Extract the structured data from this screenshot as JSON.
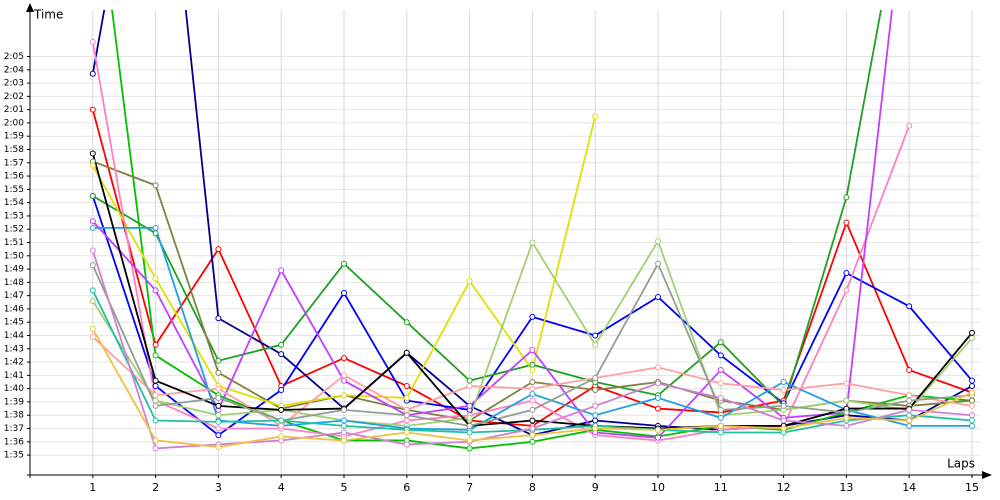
{
  "chart_data": {
    "type": "line",
    "y_label": "Time",
    "x_label": "Laps",
    "x": [
      1,
      2,
      3,
      4,
      5,
      6,
      7,
      8,
      9,
      10,
      11,
      12,
      13,
      14,
      15
    ],
    "xlim": [
      0,
      15
    ],
    "xticks": [
      1,
      2,
      3,
      4,
      5,
      6,
      7,
      8,
      9,
      10,
      11,
      12,
      13,
      14,
      15
    ],
    "ylim": [
      93.5,
      128.5
    ],
    "yticks": [
      {
        "value": 95,
        "label": "1:35"
      },
      {
        "value": 96,
        "label": "1:36"
      },
      {
        "value": 97,
        "label": "1:37"
      },
      {
        "value": 98,
        "label": "1:38"
      },
      {
        "value": 99,
        "label": "1:39"
      },
      {
        "value": 100,
        "label": "1:40"
      },
      {
        "value": 101,
        "label": "1:41"
      },
      {
        "value": 102,
        "label": "1:42"
      },
      {
        "value": 103,
        "label": "1:43"
      },
      {
        "value": 104,
        "label": "1:44"
      },
      {
        "value": 105,
        "label": "1:45"
      },
      {
        "value": 106,
        "label": "1:46"
      },
      {
        "value": 107,
        "label": "1:47"
      },
      {
        "value": 108,
        "label": "1:48"
      },
      {
        "value": 109,
        "label": "1:49"
      },
      {
        "value": 110,
        "label": "1:50"
      },
      {
        "value": 111,
        "label": "1:51"
      },
      {
        "value": 112,
        "label": "1:52"
      },
      {
        "value": 113,
        "label": "1:53"
      },
      {
        "value": 114,
        "label": "1:54"
      },
      {
        "value": 115,
        "label": "1:55"
      },
      {
        "value": 116,
        "label": "1:56"
      },
      {
        "value": 117,
        "label": "1:57"
      },
      {
        "value": 118,
        "label": "1:58"
      },
      {
        "value": 119,
        "label": "1:59"
      },
      {
        "value": 120,
        "label": "2:00"
      },
      {
        "value": 121,
        "label": "2:01"
      },
      {
        "value": 122,
        "label": "2:02"
      },
      {
        "value": 123,
        "label": "2:03"
      },
      {
        "value": 124,
        "label": "2:04"
      },
      {
        "value": 125,
        "label": "2:05"
      }
    ],
    "grid": true,
    "series": [
      {
        "color": "#ff0000",
        "values": [
          121,
          103.3,
          110.5,
          100.2,
          102.3,
          100.2,
          97.6,
          97.2,
          100.2,
          98.5,
          98.2,
          99.1,
          112.5,
          101.4,
          99.7
        ]
      },
      {
        "color": "#000090",
        "values": [
          123.7,
          150,
          105.3,
          102.6,
          98.5,
          102.7,
          98.7,
          96.5,
          97.6,
          97.2,
          96.9,
          97.2,
          98,
          97.6,
          100.2
        ]
      },
      {
        "color": "#0000ff",
        "values": [
          114.5,
          100.2,
          96.5,
          99.9,
          107.2,
          99.1,
          98.4,
          105.4,
          104,
          106.9,
          102.5,
          98.9,
          108.7,
          106.2,
          100.6
        ]
      },
      {
        "color": "#20a020",
        "values": [
          114.5,
          111.7,
          102.1,
          103.3,
          109.4,
          105,
          100.6,
          101.8,
          100.5,
          99.5,
          103.5,
          98.7,
          114.4,
          140,
          null
        ]
      },
      {
        "color": "#00c000",
        "values": [
          140,
          102.5,
          99.5,
          97.6,
          96.1,
          96.1,
          95.5,
          96,
          96.9,
          96.4,
          97.2,
          96.9,
          98.2,
          99.5,
          99.1
        ]
      },
      {
        "color": "#808040",
        "values": [
          117.1,
          115.3,
          101.2,
          98.5,
          99.5,
          98.4,
          97.6,
          100.5,
          99.9,
          100.5,
          99.1,
          98.4,
          99.1,
          98.7,
          99.1
        ]
      },
      {
        "color": "#e0e000",
        "values": [
          116.8,
          108.3,
          100.2,
          98.7,
          99.5,
          99.3,
          108.1,
          101.4,
          120.5,
          null,
          null,
          null,
          null,
          null,
          null
        ]
      },
      {
        "color": "#ff80c0",
        "values": [
          126.1,
          99.1,
          97,
          97,
          96.4,
          97.6,
          98,
          99.1,
          96.5,
          96.1,
          96.9,
          97.2,
          107.4,
          119.8,
          null
        ]
      },
      {
        "color": "#c040ff",
        "values": [
          112.6,
          107.4,
          98.4,
          108.9,
          100.6,
          98,
          98.7,
          102.9,
          96.7,
          96.3,
          101.4,
          97.8,
          98.2,
          140,
          null
        ]
      },
      {
        "color": "#a0d070",
        "values": [
          106.6,
          99.1,
          98,
          98.4,
          97.6,
          97.2,
          97.8,
          111,
          103.3,
          111.1,
          98,
          98.4,
          99.1,
          98.4,
          103.8
        ]
      },
      {
        "color": "#20a0e0",
        "values": [
          112.1,
          112.1,
          97.6,
          97.2,
          97.6,
          97,
          96.9,
          99.6,
          98,
          99.3,
          97.8,
          100.5,
          98.4,
          97.2,
          97.2
        ]
      },
      {
        "color": "#ffa0a0",
        "values": [
          103.9,
          99.5,
          100,
          97.2,
          101,
          98.4,
          100.2,
          100,
          100.8,
          101.6,
          100.4,
          99.9,
          100.4,
          99.5,
          98.7
        ]
      },
      {
        "color": "#000000",
        "values": [
          117.7,
          100.6,
          98.7,
          98.4,
          98.5,
          102.7,
          97.2,
          97.6,
          97.2,
          97,
          97.2,
          97.2,
          98.5,
          98.5,
          104.2
        ]
      },
      {
        "color": "#90a090",
        "values": [
          109.3,
          98.7,
          99.3,
          97.6,
          98.4,
          98,
          97.2,
          98.4,
          100.8,
          109.4,
          98.4,
          98.7,
          98.2,
          99.1,
          99.5
        ]
      },
      {
        "color": "#20c0a0",
        "values": [
          107.4,
          97.6,
          97.5,
          97.6,
          97.2,
          96.9,
          96.7,
          96.9,
          97.2,
          96.9,
          96.7,
          96.7,
          97.6,
          98,
          97.6
        ]
      },
      {
        "color": "#d080d0",
        "values": [
          110.4,
          95.5,
          95.8,
          96.1,
          96.7,
          95.8,
          96,
          97,
          98.7,
          100.4,
          99.3,
          97.6,
          97.2,
          98.4,
          98
        ]
      },
      {
        "color": "#f0c040",
        "values": [
          104.5,
          96.1,
          95.6,
          96.4,
          96.1,
          96.7,
          96.1,
          96.5,
          97,
          96.9,
          97.2,
          97,
          97.8,
          97.6,
          99.7
        ]
      }
    ]
  }
}
